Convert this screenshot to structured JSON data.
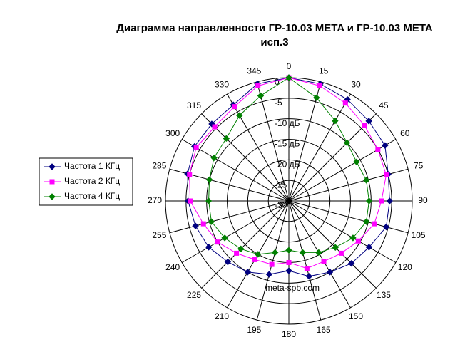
{
  "chart_data": {
    "type": "radar",
    "title": [
      "Диаграмма направленности ГР-10.03 META и ГР-10.03 META",
      "исп.3"
    ],
    "annotation": "meta-spb.com",
    "categories": [
      "0",
      "15",
      "30",
      "45",
      "60",
      "75",
      "90",
      "105",
      "120",
      "135",
      "150",
      "165",
      "180",
      "195",
      "210",
      "225",
      "240",
      "255",
      "270",
      "285",
      "300",
      "315",
      "330",
      "345"
    ],
    "rlim": [
      -30,
      0
    ],
    "rticks": [
      0,
      -5,
      {
        "value": -10,
        "label": "-10 дБ"
      },
      {
        "value": -15,
        "label": "-15 дБ"
      },
      {
        "value": -20,
        "label": "-20 дБ"
      },
      -25,
      -30
    ],
    "grid": true,
    "legend": "left",
    "series": [
      {
        "name": "Частота 1 КГц",
        "color": "#000080",
        "marker": "diamond",
        "values": [
          0,
          -0.5,
          -1.5,
          -2.5,
          -3,
          -5,
          -5.5,
          -5.5,
          -7.5,
          -8.5,
          -10,
          -11,
          -13,
          -11.5,
          -10,
          -9,
          -7.5,
          -6.5,
          -5.5,
          -4.5,
          -3.5,
          -3.5,
          -3,
          -0.5
        ]
      },
      {
        "name": "Частота 2 КГц",
        "color": "#ff00ff",
        "marker": "square",
        "values": [
          0,
          -1,
          -2.5,
          -4,
          -5,
          -5.5,
          -7.5,
          -8.5,
          -10.5,
          -12,
          -13,
          -13,
          -15,
          -14,
          -13.5,
          -12,
          -10,
          -8.5,
          -6,
          -5,
          -4,
          -4.5,
          -3.5,
          -1
        ]
      },
      {
        "name": "Частота 4 КГц",
        "color": "#008000",
        "marker": "diamond",
        "values": [
          0,
          -4,
          -7.5,
          -10,
          -11,
          -10.5,
          -10.5,
          -10.5,
          -12,
          -14,
          -15.5,
          -17,
          -18,
          -17,
          -15,
          -13.5,
          -12,
          -10.5,
          -10.5,
          -10,
          -9,
          -8.5,
          -6,
          -3.5
        ]
      }
    ]
  }
}
